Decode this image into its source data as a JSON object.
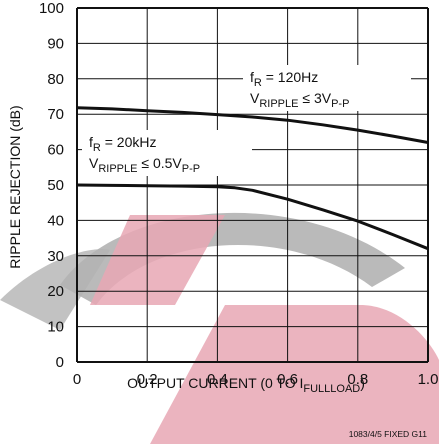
{
  "chart_data": {
    "type": "line",
    "xlim": [
      0,
      1.0
    ],
    "ylim": [
      0,
      100
    ],
    "x_ticks": [
      "0",
      "0.2",
      "0.4",
      "0.6",
      "0.8",
      "1.0"
    ],
    "y_ticks": [
      "0",
      "10",
      "20",
      "30",
      "40",
      "50",
      "60",
      "70",
      "80",
      "90",
      "100"
    ],
    "xlabel": {
      "main": "OUTPUT CURRENT (0 TO I",
      "sub": "FULLLOAD",
      "tail": ")"
    },
    "ylabel": "RIPPLE REJECTION (dB)",
    "grid": true,
    "series": [
      {
        "x": [
          0,
          0.1,
          0.2,
          0.3,
          0.4,
          0.5,
          0.6,
          0.7,
          0.8,
          0.9,
          1.0
        ],
        "y": [
          71.8,
          71.5,
          71.0,
          70.5,
          69.9,
          69.2,
          68.3,
          67.0,
          65.5,
          63.8,
          62.0
        ]
      },
      {
        "x": [
          0,
          0.1,
          0.2,
          0.3,
          0.4,
          0.45,
          0.5,
          0.6,
          0.7,
          0.8,
          0.9,
          1.0
        ],
        "y": [
          50.0,
          49.9,
          49.8,
          49.7,
          49.5,
          49.2,
          48.5,
          46.0,
          43.0,
          39.8,
          36.0,
          32.0
        ]
      }
    ],
    "annotations": [
      {
        "f_main": "f",
        "f_sub": "R",
        "f_value": " = 120Hz",
        "v_main": "V",
        "v_sub": "RIPPLE",
        "v_mid": " ≤ 3V",
        "v_sub2": "P-P"
      },
      {
        "f_main": "f",
        "f_sub": "R",
        "f_value": " = 20kHz",
        "v_main": "V",
        "v_sub": "RIPPLE",
        "v_mid": " ≤ 0.5V",
        "v_sub2": "P-P"
      }
    ],
    "footer": "1083/4/5 FIXED G11"
  },
  "colors": {
    "grid": "#111111",
    "line": "#111111",
    "watermark_gray": "#b3b3b3",
    "watermark_pink": "#e8a7b4"
  }
}
